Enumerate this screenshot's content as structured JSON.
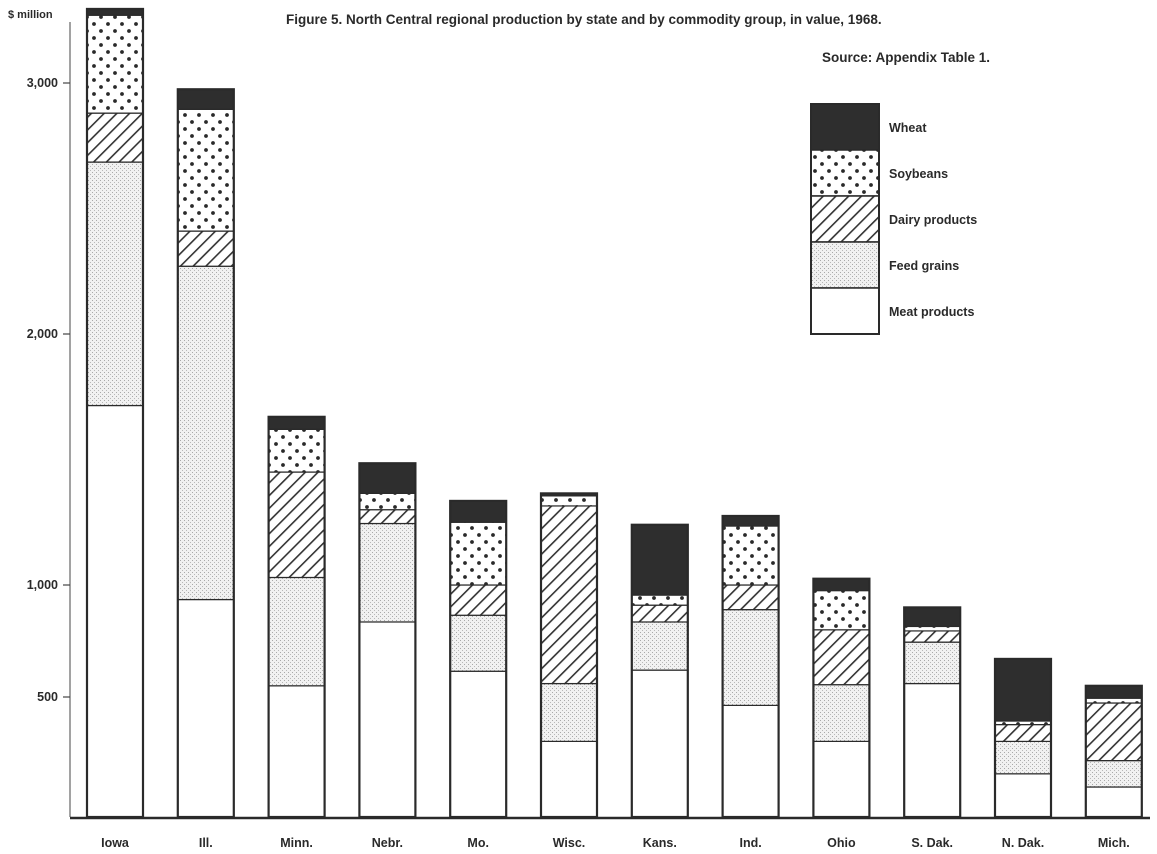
{
  "chart_data": {
    "type": "bar",
    "stacked": true,
    "title": "Figure 5.  North Central regional production by state and by commodity group, in value, 1968.",
    "source": "Source:  Appendix Table 1.",
    "ylabel": "$ million",
    "yticks": [
      "500",
      "1,000",
      "2,000",
      "3,000"
    ],
    "ytick_values": [
      500,
      1000,
      2000,
      3000
    ],
    "ylim": [
      0,
      3325
    ],
    "axis_break": true,
    "categories": [
      "Iowa",
      "Ill.",
      "Minn.",
      "Nebr.",
      "Mo.",
      "Wisc.",
      "Kans.",
      "Ind.",
      "Ohio",
      "S. Dak.",
      "N. Dak.",
      "Mich."
    ],
    "legend_position": "top-right",
    "series": [
      {
        "name": "Meat products",
        "pattern": "blank",
        "values": [
          1715,
          935,
          550,
          835,
          615,
          315,
          620,
          465,
          315,
          560,
          180,
          125
        ]
      },
      {
        "name": "Feed grains",
        "pattern": "fine-stipple",
        "values": [
          970,
          1335,
          480,
          410,
          250,
          245,
          215,
          425,
          240,
          185,
          135,
          110
        ]
      },
      {
        "name": "Dairy products",
        "pattern": "diagonal-hatch",
        "values": [
          195,
          140,
          420,
          55,
          135,
          755,
          75,
          110,
          245,
          50,
          70,
          240
        ]
      },
      {
        "name": "Soybeans",
        "pattern": "dots",
        "values": [
          390,
          485,
          170,
          65,
          250,
          40,
          45,
          235,
          175,
          20,
          15,
          20
        ]
      },
      {
        "name": "Wheat",
        "pattern": "solid",
        "values": [
          25,
          80,
          50,
          120,
          85,
          10,
          285,
          40,
          50,
          85,
          270,
          55
        ]
      }
    ]
  }
}
